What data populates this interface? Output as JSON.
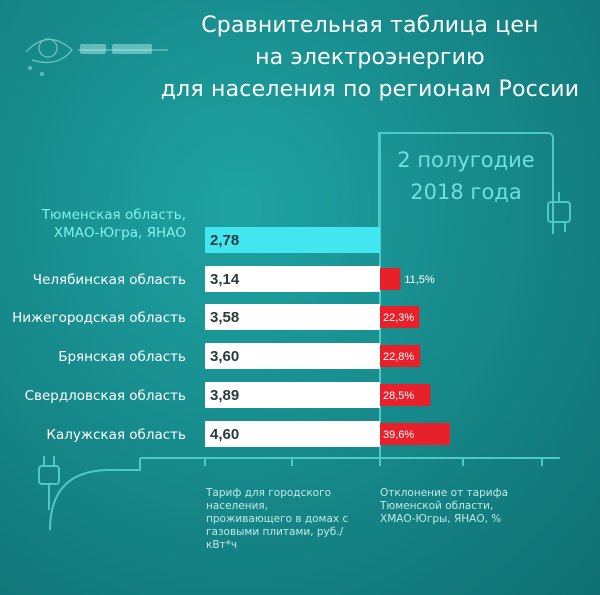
{
  "header": {
    "title_lines": [
      "Сравнительная таблица цен",
      "на электроэнергию",
      "для населения по регионам России"
    ]
  },
  "period_lines": [
    "2 полугодие",
    "2018 года"
  ],
  "footer": {
    "left_caption": "Тариф для городского населения, проживающего в домах с газовыми плитами, руб./кВт*ч",
    "right_caption": "Отклонение от тарифа Тюменской области, ХМАО-Югры, ЯНАО, %"
  },
  "colors": {
    "background": "#178b8c",
    "highlight_bar": "#42e6ef",
    "base_bar": "#ffffff",
    "deviation_bar": "#e8202a",
    "accent_text": "#7ff3ee"
  },
  "chart_data": {
    "type": "bar",
    "orientation": "horizontal",
    "categories": [
      "Тюменская область, ХМАО-Югра, ЯНАО",
      "Челябинская область",
      "Нижегородская область",
      "Брянская область",
      "Свердловская область",
      "Калужская область"
    ],
    "category_lines": [
      [
        "Тюменская область,",
        "ХМАО-Югра, ЯНАО"
      ],
      [
        "Челябинская область"
      ],
      [
        "Нижегородская область"
      ],
      [
        "Брянская область"
      ],
      [
        "Свердловская область"
      ],
      [
        "Калужская область"
      ]
    ],
    "series": [
      {
        "values": [
          2.78,
          3.14,
          3.58,
          3.6,
          3.89,
          4.6
        ],
        "value_labels": [
          "2,78",
          "3,14",
          "3,58",
          "3,60",
          "3,89",
          "4,60"
        ]
      },
      {
        "values": [
          null,
          11.5,
          22.3,
          22.8,
          28.5,
          39.6
        ],
        "value_labels": [
          "",
          "11,5%",
          "22,3%",
          "22,8%",
          "28,5%",
          "39,6%"
        ]
      }
    ],
    "highlight_index": 0,
    "grid": true
  }
}
